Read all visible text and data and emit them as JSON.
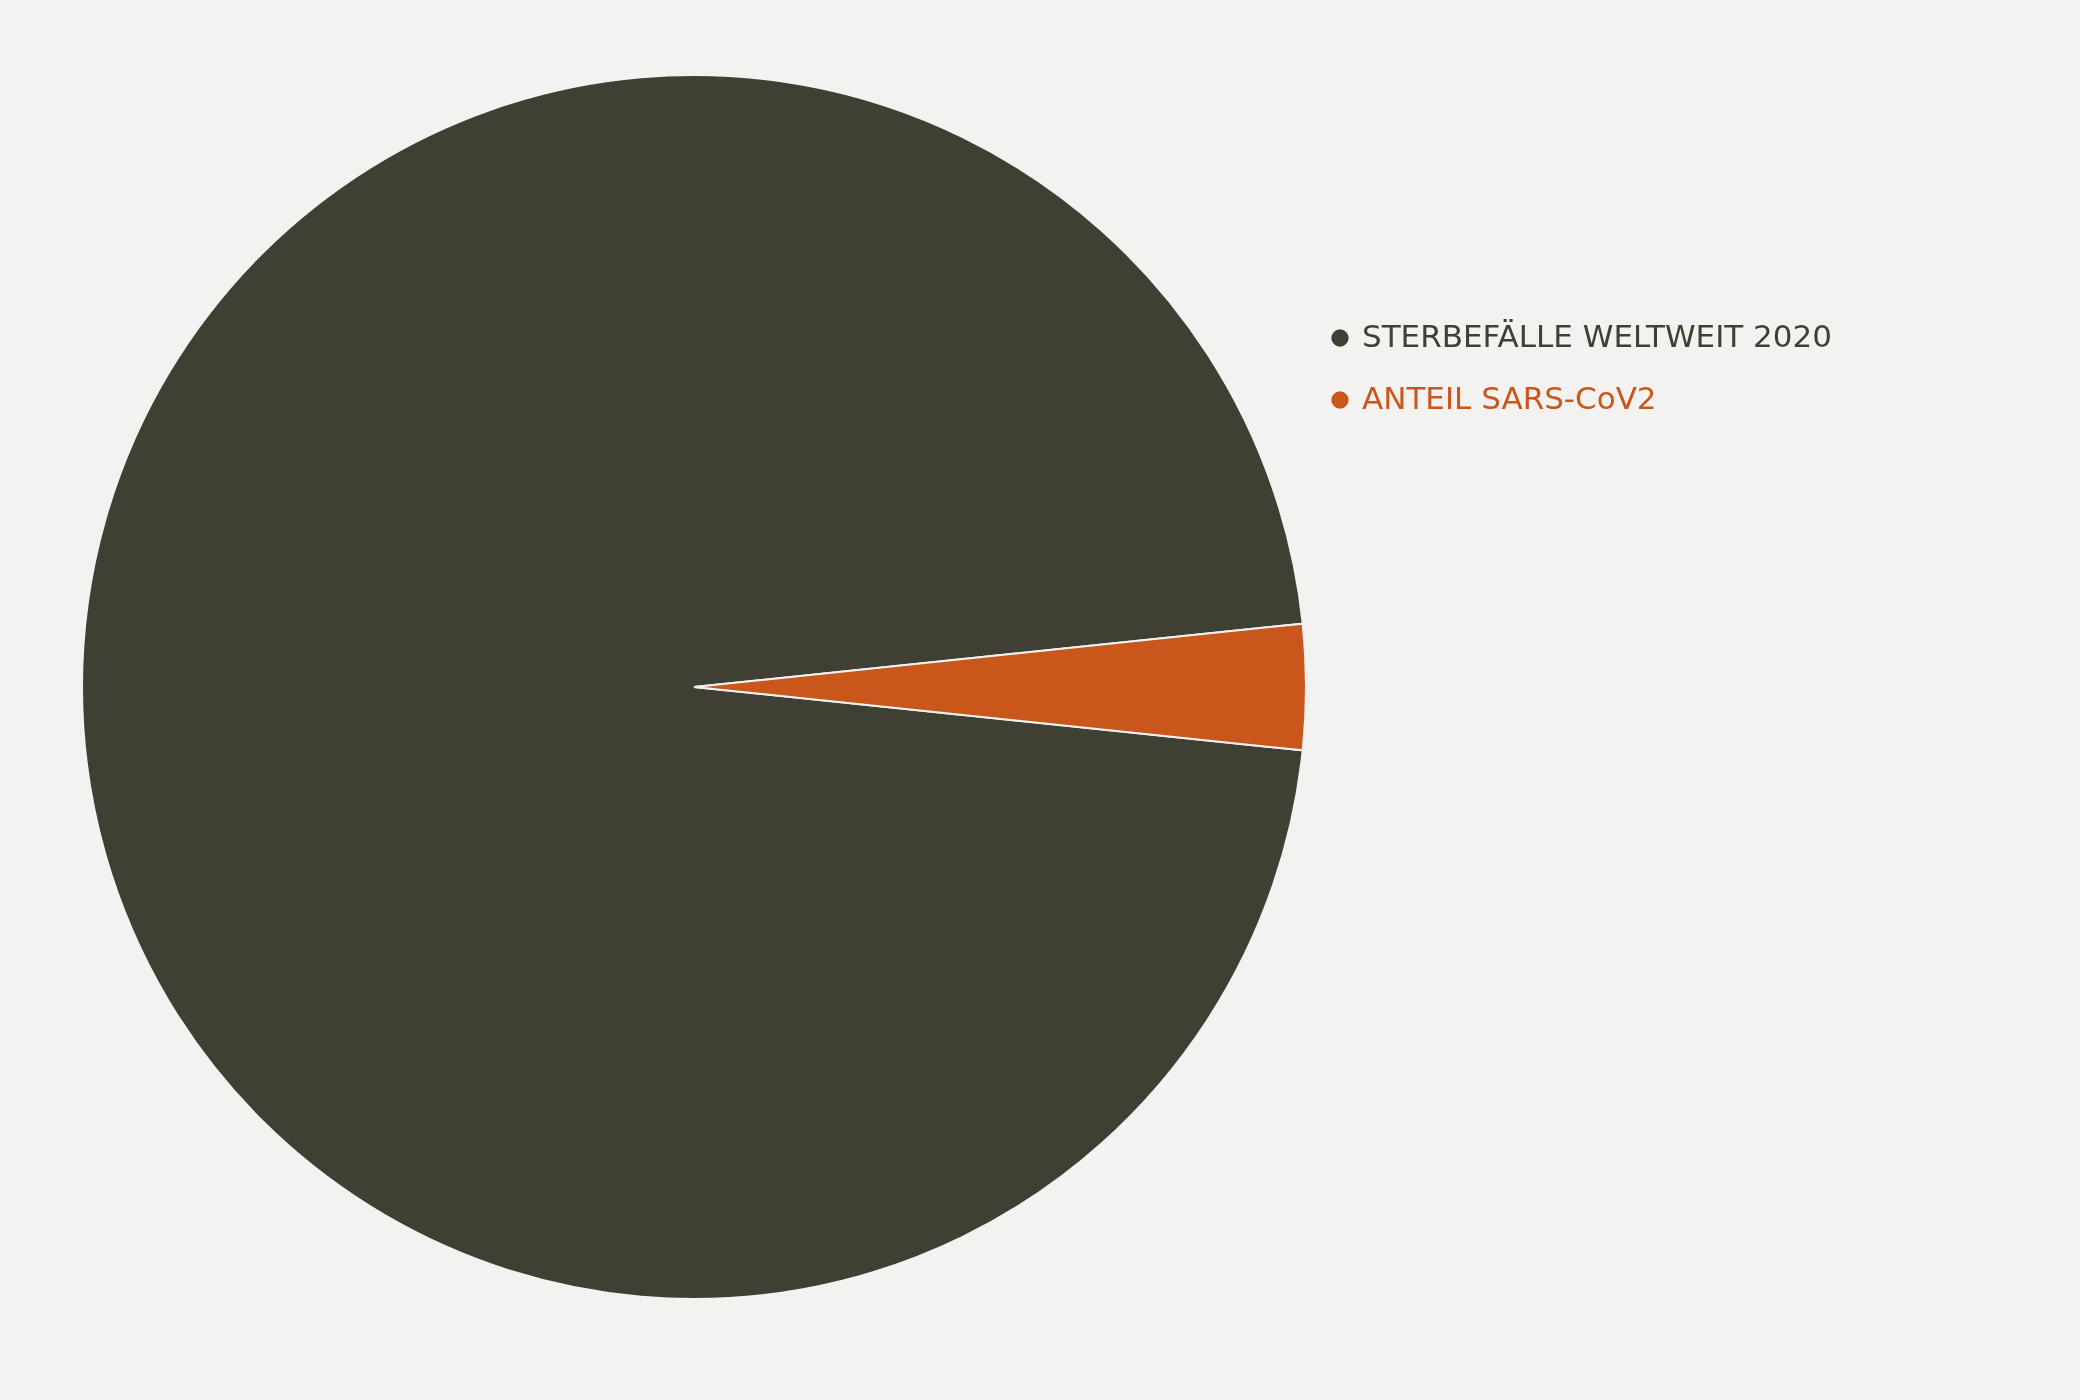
{
  "chart_data": {
    "type": "pie",
    "categories": [
      "STERBEFÄLLE WELTWEIT 2020",
      "ANTEIL SARS-CoV2"
    ],
    "values": [
      96.7,
      3.3
    ],
    "colors": [
      "#3f4033",
      "#c9561a"
    ],
    "legend": "right"
  }
}
